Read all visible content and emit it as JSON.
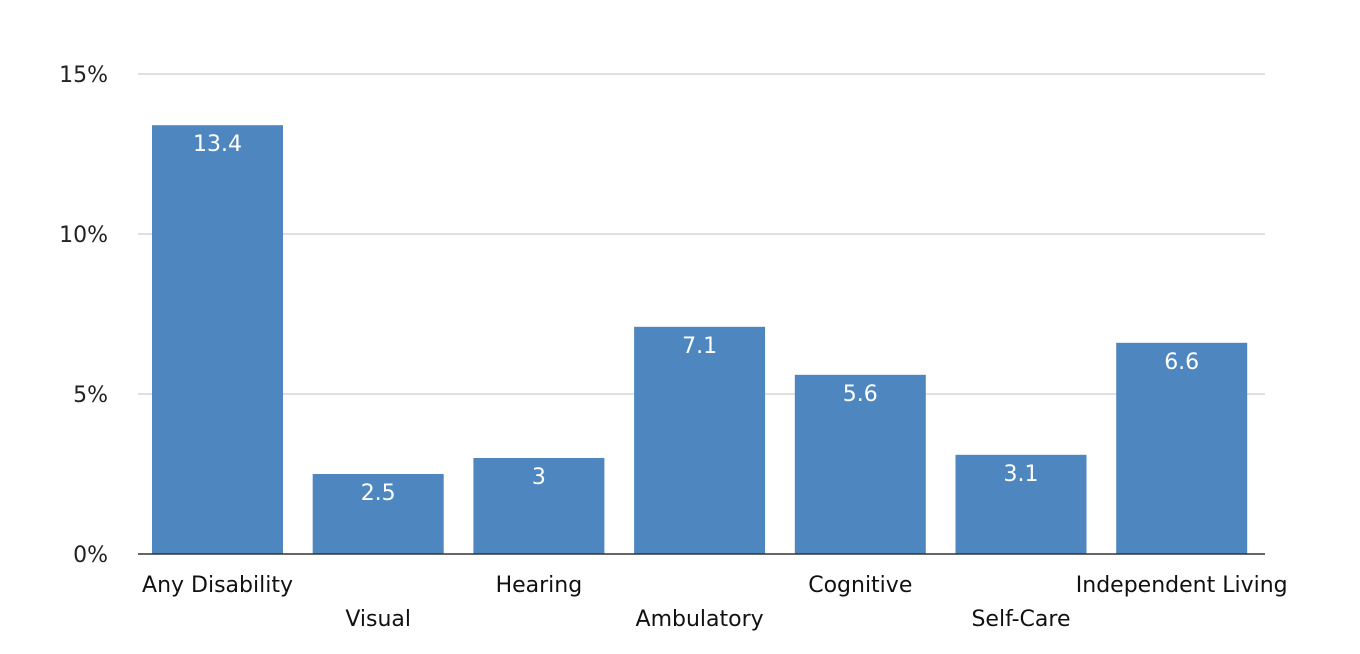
{
  "chart_data": {
    "type": "bar",
    "title": "",
    "xlabel": "",
    "ylabel": "",
    "categories": [
      "Any Disability",
      "Visual",
      "Hearing",
      "Ambulatory",
      "Cognitive",
      "Self-Care",
      "Independent Living"
    ],
    "values": [
      13.4,
      2.5,
      3,
      7.1,
      5.6,
      3.1,
      6.6
    ],
    "value_labels": [
      "13.4",
      "2.5",
      "3",
      "7.1",
      "5.6",
      "3.1",
      "6.6"
    ],
    "ylim": [
      0,
      15
    ],
    "yticks": [
      0,
      5,
      10,
      15
    ],
    "ytick_labels": [
      "0%",
      "5%",
      "10%",
      "15%"
    ],
    "grid": true,
    "legend": "none",
    "bar_color": "#4e87bf",
    "label_color": "#ffffff"
  }
}
